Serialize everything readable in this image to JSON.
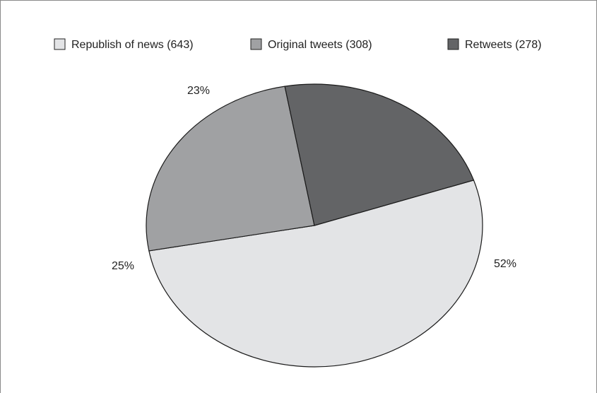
{
  "chart_data": {
    "type": "pie",
    "title": "",
    "categories": [
      "Republish of news (643)",
      "Original tweets (308)",
      "Retweets (278)"
    ],
    "values": [
      643,
      308,
      278
    ],
    "percent_labels": [
      "52%",
      "25%",
      "23%"
    ],
    "colors": [
      "#e3e4e6",
      "#a0a1a3",
      "#636466"
    ],
    "legend_position": "top",
    "start_angle_deg": 71.3,
    "direction": "clockwise"
  }
}
